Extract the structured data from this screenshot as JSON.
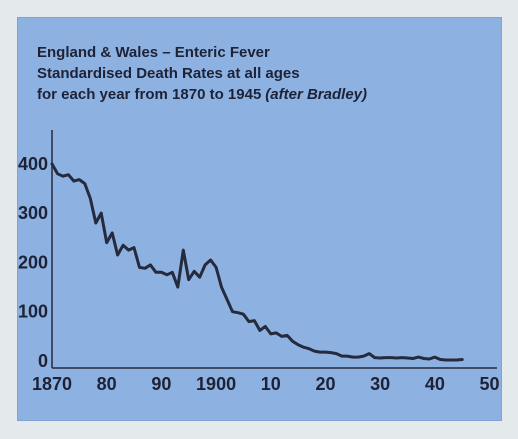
{
  "chart_data": {
    "type": "line",
    "title_lines": [
      "England & Wales – Enteric Fever",
      "Standardised Death Rates at all ages",
      "for each year from 1870 to 1945"
    ],
    "title_attribution": "(after Bradley)",
    "xlabel": "",
    "ylabel": "",
    "xlim": [
      1870,
      1951
    ],
    "ylim": [
      0,
      420
    ],
    "x_ticks": [
      1870,
      1880,
      1890,
      1900,
      1910,
      1920,
      1930,
      1940,
      1950
    ],
    "x_tick_labels": [
      "1870",
      "80",
      "90",
      "1900",
      "10",
      "20",
      "30",
      "40",
      "50"
    ],
    "y_ticks": [
      0,
      100,
      200,
      300,
      400
    ],
    "y_tick_labels": [
      "0",
      "100",
      "200",
      "300",
      "400"
    ],
    "grid": false,
    "series": [
      {
        "name": "",
        "color": "#262a3d",
        "x": [
          1870,
          1871,
          1872,
          1873,
          1874,
          1875,
          1876,
          1877,
          1878,
          1879,
          1880,
          1881,
          1882,
          1883,
          1884,
          1885,
          1886,
          1887,
          1888,
          1889,
          1890,
          1891,
          1892,
          1893,
          1894,
          1895,
          1896,
          1897,
          1898,
          1899,
          1900,
          1901,
          1902,
          1903,
          1904,
          1905,
          1906,
          1907,
          1908,
          1909,
          1910,
          1911,
          1912,
          1913,
          1914,
          1915,
          1916,
          1917,
          1918,
          1919,
          1920,
          1921,
          1922,
          1923,
          1924,
          1925,
          1926,
          1927,
          1928,
          1929,
          1930,
          1931,
          1932,
          1933,
          1934,
          1935,
          1936,
          1937,
          1938,
          1939,
          1940,
          1941,
          1942,
          1943,
          1944,
          1945
        ],
        "y": [
          400,
          380,
          375,
          378,
          365,
          368,
          360,
          330,
          280,
          300,
          240,
          260,
          215,
          235,
          225,
          230,
          190,
          188,
          195,
          180,
          180,
          175,
          180,
          150,
          225,
          165,
          182,
          170,
          195,
          205,
          190,
          150,
          125,
          100,
          98,
          95,
          80,
          82,
          62,
          70,
          55,
          57,
          50,
          52,
          40,
          33,
          28,
          25,
          20,
          18,
          18,
          17,
          15,
          10,
          10,
          8,
          8,
          10,
          15,
          7,
          6,
          7,
          7,
          6,
          7,
          6,
          5,
          8,
          5,
          4,
          8,
          3,
          2,
          2,
          2,
          3
        ]
      }
    ]
  }
}
